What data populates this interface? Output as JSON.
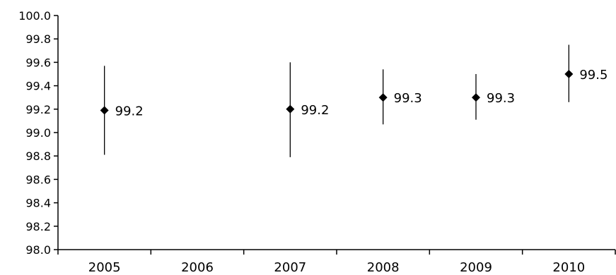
{
  "chart_data": {
    "type": "scatter",
    "title": "",
    "xlabel": "",
    "ylabel": "",
    "categories": [
      "2005",
      "2006",
      "2007",
      "2008",
      "2009",
      "2010"
    ],
    "ylim": [
      98.0,
      100.0
    ],
    "y_ticks": [
      "98.0",
      "98.2",
      "98.4",
      "98.6",
      "98.8",
      "99.0",
      "99.2",
      "99.4",
      "99.6",
      "99.8",
      "100.0"
    ],
    "grid": false,
    "legend": "none",
    "marker": "diamond",
    "marker_color": "#000000",
    "points": [
      {
        "x": "2005",
        "y": 99.19,
        "low": 98.81,
        "high": 99.57,
        "label": "99.2"
      },
      {
        "x": "2007",
        "y": 99.2,
        "low": 98.79,
        "high": 99.6,
        "label": "99.2"
      },
      {
        "x": "2008",
        "y": 99.3,
        "low": 99.07,
        "high": 99.54,
        "label": "99.3"
      },
      {
        "x": "2009",
        "y": 99.3,
        "low": 99.11,
        "high": 99.5,
        "label": "99.3"
      },
      {
        "x": "2010",
        "y": 99.5,
        "low": 99.26,
        "high": 99.75,
        "label": "99.5"
      }
    ]
  }
}
